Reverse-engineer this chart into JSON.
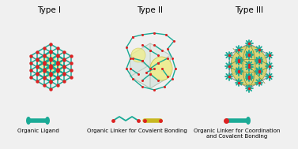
{
  "title_types": [
    "Type I",
    "Type II",
    "Type III"
  ],
  "bg_color": "#f0f0f0",
  "teal": "#1aaa96",
  "red": "#dd2222",
  "yellow": "#f0ee88",
  "yellow_dark": "#c8c040",
  "cube_face": "#e8eeea",
  "cube_edge": "#aabbaa",
  "font_size_title": 7.5,
  "font_size_legend": 5.0,
  "legend_labels": [
    "Organic Ligand",
    "Organic Linker for Covalent Bonding",
    "Organic Linker for Coordination\nand Covalent Bonding"
  ]
}
